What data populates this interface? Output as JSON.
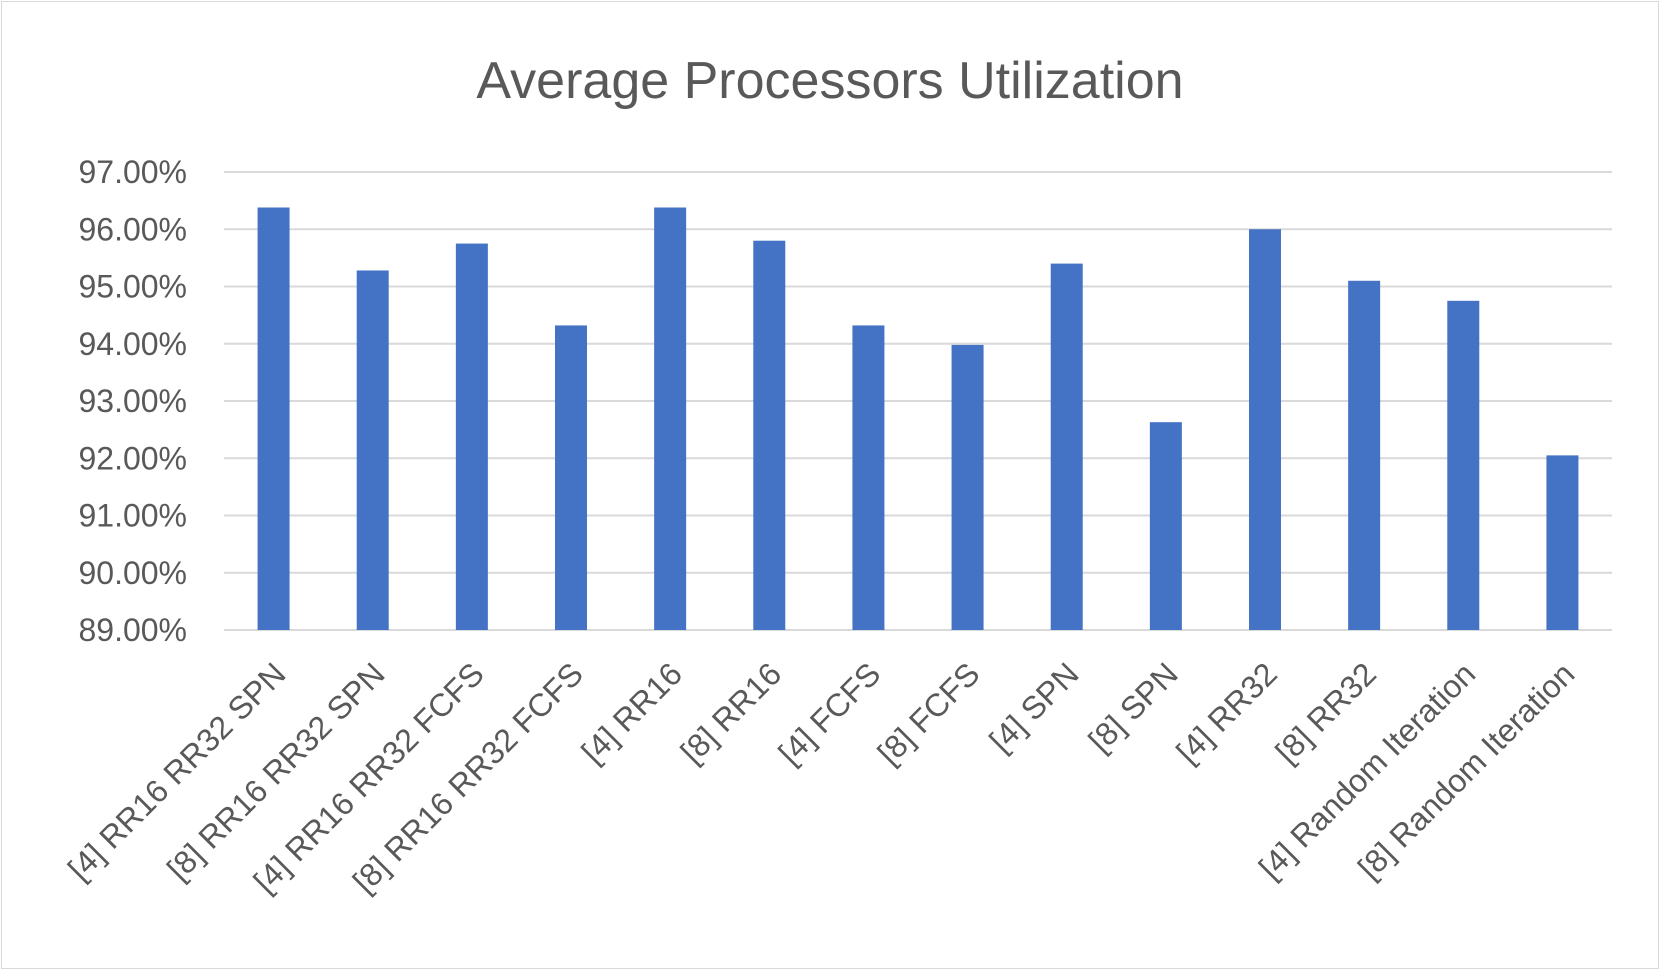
{
  "chart_data": {
    "type": "bar",
    "title": "Average Processors Utilization",
    "xlabel": "",
    "ylabel": "",
    "ylim": [
      89,
      97
    ],
    "yticks": [
      {
        "value": 97,
        "label": "97.00%"
      },
      {
        "value": 96,
        "label": "96.00%"
      },
      {
        "value": 95,
        "label": "95.00%"
      },
      {
        "value": 94,
        "label": "94.00%"
      },
      {
        "value": 93,
        "label": "93.00%"
      },
      {
        "value": 92,
        "label": "92.00%"
      },
      {
        "value": 91,
        "label": "91.00%"
      },
      {
        "value": 90,
        "label": "90.00%"
      },
      {
        "value": 89,
        "label": "89.00%"
      }
    ],
    "grid": true,
    "legend": "none",
    "bar_color": "#4472c4",
    "categories": [
      "[4] RR16 RR32 SPN",
      "[8] RR16 RR32 SPN",
      "[4] RR16 RR32 FCFS",
      "[8] RR16 RR32 FCFS",
      "[4] RR16",
      "[8] RR16",
      "[4] FCFS",
      "[8] FCFS",
      "[4] SPN",
      "[8] SPN",
      "[4] RR32",
      "[8] RR32",
      "[4] Random Iteration",
      "[8] Random Iteration"
    ],
    "values": [
      96.38,
      95.28,
      95.75,
      94.32,
      96.38,
      95.8,
      94.32,
      93.98,
      95.4,
      92.63,
      96.0,
      95.1,
      94.75,
      92.05
    ]
  }
}
